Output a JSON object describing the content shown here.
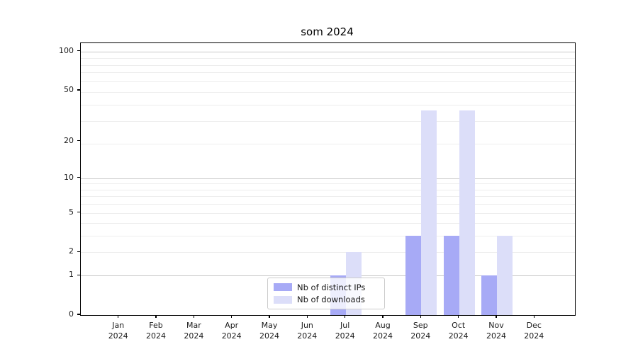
{
  "title": "som 2024",
  "chart_data": {
    "type": "bar",
    "title": "som 2024",
    "categories": [
      "Jan 2024",
      "Feb 2024",
      "Mar 2024",
      "Apr 2024",
      "May 2024",
      "Jun 2024",
      "Jul 2024",
      "Aug 2024",
      "Sep 2024",
      "Oct 2024",
      "Nov 2024",
      "Dec 2024"
    ],
    "series": [
      {
        "name": "Nb of distinct IPs",
        "color": "#a7aaf6",
        "values": [
          0,
          0,
          0,
          0,
          0,
          0,
          1,
          0,
          3,
          3,
          1,
          0
        ]
      },
      {
        "name": "Nb of downloads",
        "color": "#dcdef9",
        "values": [
          0,
          0,
          0,
          0,
          0,
          0,
          2,
          0,
          35,
          35,
          3,
          0
        ]
      }
    ],
    "yscale": "log1p",
    "yticks": [
      0,
      1,
      2,
      5,
      10,
      20,
      50,
      100
    ],
    "minor_gridline_levels": [
      2,
      3,
      4,
      5,
      6,
      7,
      8,
      9,
      19,
      29,
      39,
      49,
      59,
      69,
      79,
      89
    ],
    "major_gridline_levels": [
      1,
      10,
      100
    ],
    "ylim": [
      0,
      116
    ],
    "xlabel": "",
    "ylabel": "",
    "grid": "horizontal",
    "legend_position": "lower-center-inside"
  },
  "legend": {
    "items": [
      {
        "label": "Nb of distinct IPs",
        "color": "#a7aaf6"
      },
      {
        "label": "Nb of downloads",
        "color": "#dcdef9"
      }
    ]
  },
  "colors": {
    "background": "#ffffff",
    "spine": "#000000",
    "grid_major": "#c9c9c9",
    "grid_minor": "#ededed",
    "text": "#1a1a1a",
    "legend_border": "#cccccc"
  }
}
